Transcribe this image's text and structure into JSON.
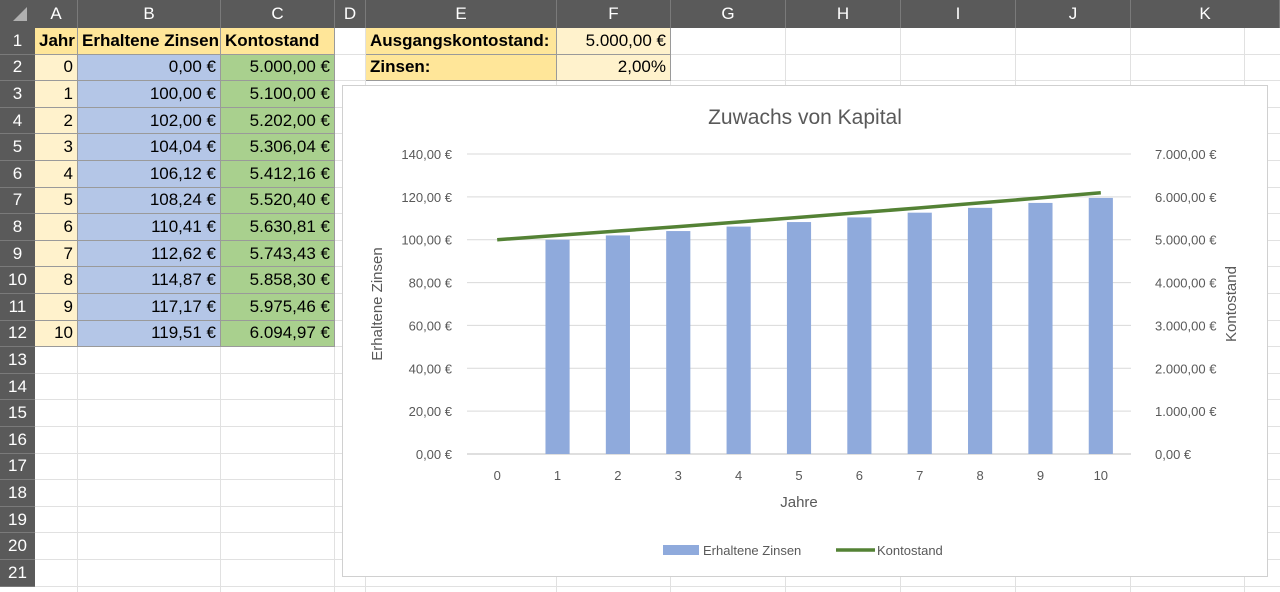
{
  "columns": [
    "A",
    "B",
    "C",
    "D",
    "E",
    "F",
    "G",
    "H",
    "I",
    "J",
    "K"
  ],
  "rows": [
    "1",
    "2",
    "3",
    "4",
    "5",
    "6",
    "7",
    "8",
    "9",
    "10",
    "11",
    "12",
    "13",
    "14",
    "15",
    "16",
    "17",
    "18",
    "19",
    "20",
    "21"
  ],
  "table": {
    "headers": [
      "Jahr",
      "Erhaltene Zinsen",
      "Kontostand"
    ],
    "years": [
      "0",
      "1",
      "2",
      "3",
      "4",
      "5",
      "6",
      "7",
      "8",
      "9",
      "10"
    ],
    "interest": [
      "0,00 €",
      "100,00 €",
      "102,00 €",
      "104,04 €",
      "106,12 €",
      "108,24 €",
      "110,41 €",
      "112,62 €",
      "114,87 €",
      "117,17 €",
      "119,51 €"
    ],
    "balance": [
      "5.000,00 €",
      "5.100,00 €",
      "5.202,00 €",
      "5.306,04 €",
      "5.412,16 €",
      "5.520,40 €",
      "5.630,81 €",
      "5.743,43 €",
      "5.858,30 €",
      "5.975,46 €",
      "6.094,97 €"
    ]
  },
  "params": {
    "start_label": "Ausgangskontostand:",
    "start_value": "5.000,00 €",
    "rate_label": "Zinsen:",
    "rate_value": "2,00%"
  },
  "colors": {
    "header_bg": "#5a5a5a",
    "year_fill": "#fff2cc",
    "header_fill": "#ffe699",
    "interest_fill": "#b4c6e7",
    "balance_fill": "#a9d08e",
    "bar_color": "#8faadc",
    "line_color": "#548235"
  },
  "chart_data": {
    "type": "bar",
    "title": "Zuwachs von Kapital",
    "xlabel": "Jahre",
    "ylabel": "Erhaltene Zinsen",
    "y2label": "Kontostand",
    "categories": [
      "0",
      "1",
      "2",
      "3",
      "4",
      "5",
      "6",
      "7",
      "8",
      "9",
      "10"
    ],
    "ylim": [
      0,
      140
    ],
    "y2lim": [
      0,
      7000
    ],
    "yticks": [
      "0,00 €",
      "20,00 €",
      "40,00 €",
      "60,00 €",
      "80,00 €",
      "100,00 €",
      "120,00 €",
      "140,00 €"
    ],
    "y2ticks": [
      "0,00 €",
      "1.000,00 €",
      "2.000,00 €",
      "3.000,00 €",
      "4.000,00 €",
      "5.000,00 €",
      "6.000,00 €",
      "7.000,00 €"
    ],
    "series": [
      {
        "name": "Erhaltene Zinsen",
        "type": "bar",
        "axis": "left",
        "values": [
          0,
          100,
          102,
          104.04,
          106.12,
          108.24,
          110.41,
          112.62,
          114.87,
          117.17,
          119.51
        ]
      },
      {
        "name": "Kontostand",
        "type": "line",
        "axis": "right",
        "values": [
          5000,
          5100,
          5202,
          5306.04,
          5412.16,
          5520.4,
          5630.81,
          5743.43,
          5858.3,
          5975.46,
          6094.97
        ]
      }
    ],
    "legend_position": "bottom",
    "grid": true
  }
}
